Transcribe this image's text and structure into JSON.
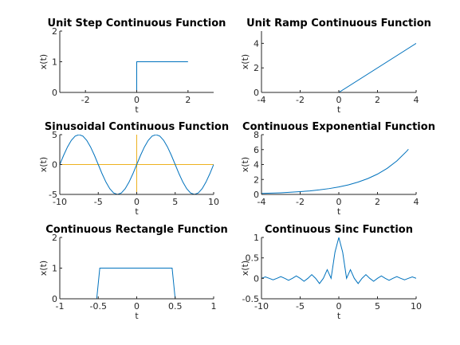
{
  "colors": {
    "series": "#0072bd",
    "axes_lines": "#edb120",
    "frame": "#262626",
    "background": "#ffffff"
  },
  "chart_data": [
    {
      "type": "line",
      "title": "Unit Step Continuous Function",
      "xlabel": "t",
      "ylabel": "x(t)",
      "xlim": [
        -3,
        3
      ],
      "ylim": [
        0,
        2
      ],
      "xticks": [
        -2,
        0,
        2
      ],
      "yticks": [
        0,
        1,
        2
      ],
      "grid": false,
      "series": [
        {
          "x": [
            -2,
            0,
            0,
            2
          ],
          "y": [
            0,
            0,
            1,
            1
          ]
        }
      ]
    },
    {
      "type": "line",
      "title": "Unit Ramp Continuous Function",
      "xlabel": "t",
      "ylabel": "x(t)",
      "xlim": [
        -4,
        4
      ],
      "ylim": [
        0,
        5
      ],
      "xticks": [
        -4,
        -2,
        0,
        2,
        4
      ],
      "yticks": [
        0,
        2,
        4
      ],
      "grid": false,
      "series": [
        {
          "x": [
            -4,
            0,
            4
          ],
          "y": [
            0,
            0,
            4
          ]
        }
      ]
    },
    {
      "type": "line",
      "title": "Sinusoidal Continuous Function",
      "xlabel": "t",
      "ylabel": "x(t)",
      "xlim": [
        -10,
        10
      ],
      "ylim": [
        -5,
        5
      ],
      "xticks": [
        -10,
        -5,
        0,
        5,
        10
      ],
      "yticks": [
        -5,
        0,
        5
      ],
      "grid": false,
      "reference_lines": {
        "x": 0,
        "y": 0
      },
      "series": [
        {
          "x": [
            -10,
            -9.5,
            -9,
            -8.5,
            -8,
            -7.5,
            -7,
            -6.5,
            -6,
            -5.5,
            -5,
            -4.5,
            -4,
            -3.5,
            -3,
            -2.5,
            -2,
            -1.5,
            -1,
            -0.5,
            0,
            0.5,
            1,
            1.5,
            2,
            2.5,
            3,
            3.5,
            4,
            4.5,
            5,
            5.5,
            6,
            6.5,
            7,
            7.5,
            8,
            8.5,
            9,
            9.5,
            10
          ],
          "y": [
            0,
            1.55,
            2.94,
            4.05,
            4.76,
            5,
            4.76,
            4.05,
            2.94,
            1.55,
            0,
            -1.55,
            -2.94,
            -4.05,
            -4.76,
            -5,
            -4.76,
            -4.05,
            -2.94,
            -1.55,
            0,
            1.55,
            2.94,
            4.05,
            4.76,
            5,
            4.76,
            4.05,
            2.94,
            1.55,
            0,
            -1.55,
            -2.94,
            -4.05,
            -4.76,
            -5,
            -4.76,
            -4.05,
            -2.94,
            -1.55,
            0
          ]
        }
      ]
    },
    {
      "type": "line",
      "title": "Continuous Exponential Function",
      "xlabel": "t",
      "ylabel": "x(t)",
      "xlim": [
        -4,
        4
      ],
      "ylim": [
        0,
        8
      ],
      "xticks": [
        -4,
        -2,
        0,
        2,
        4
      ],
      "yticks": [
        0,
        2,
        4,
        6,
        8
      ],
      "grid": false,
      "series": [
        {
          "x": [
            -4,
            -3.5,
            -3,
            -2.5,
            -2,
            -1.5,
            -1,
            -0.5,
            0,
            0.5,
            1,
            1.5,
            2,
            2.5,
            3,
            3.5,
            3.6
          ],
          "y": [
            0.14,
            0.17,
            0.22,
            0.29,
            0.37,
            0.47,
            0.61,
            0.78,
            1,
            1.28,
            1.65,
            2.12,
            2.72,
            3.49,
            4.48,
            5.75,
            6.05
          ]
        }
      ]
    },
    {
      "type": "line",
      "title": "Continuous Rectangle Function",
      "xlabel": "t",
      "ylabel": "x(t)",
      "xlim": [
        -1,
        1
      ],
      "ylim": [
        0,
        2
      ],
      "xticks": [
        -1,
        -0.5,
        0,
        0.5,
        1
      ],
      "yticks": [
        0,
        1,
        2
      ],
      "grid": false,
      "series": [
        {
          "x": [
            -1,
            -0.52,
            -0.48,
            0.46,
            0.5,
            1
          ],
          "y": [
            0,
            0,
            1,
            1,
            0,
            0
          ]
        }
      ]
    },
    {
      "type": "line",
      "title": "Continuous Sinc Function",
      "xlabel": "t",
      "ylabel": "x(t)",
      "xlim": [
        -10,
        10
      ],
      "ylim": [
        -0.5,
        1
      ],
      "xticks": [
        -10,
        -5,
        0,
        5,
        10
      ],
      "yticks": [
        -0.5,
        0,
        0.5,
        1
      ],
      "grid": false,
      "series": [
        {
          "x": [
            -10,
            -9.5,
            -9,
            -8.5,
            -8,
            -7.5,
            -7,
            -6.5,
            -6,
            -5.5,
            -5,
            -4.5,
            -4,
            -3.5,
            -3,
            -2.5,
            -2,
            -1.5,
            -1,
            -0.5,
            0,
            0.5,
            1,
            1.5,
            2,
            2.5,
            3,
            3.5,
            4,
            4.5,
            5,
            5.5,
            6,
            6.5,
            7,
            7.5,
            8,
            8.5,
            9,
            9.5,
            10
          ],
          "y": [
            0,
            0.034,
            0,
            -0.037,
            0,
            0.042,
            0,
            -0.049,
            0,
            0.058,
            0,
            -0.071,
            0,
            0.091,
            0,
            -0.127,
            0,
            0.212,
            0,
            0.637,
            1,
            0.637,
            0,
            0.212,
            0,
            -0.127,
            0,
            0.091,
            0,
            -0.071,
            0,
            0.058,
            0,
            -0.049,
            0,
            0.042,
            0,
            -0.037,
            0,
            0.034,
            0
          ]
        }
      ]
    }
  ]
}
